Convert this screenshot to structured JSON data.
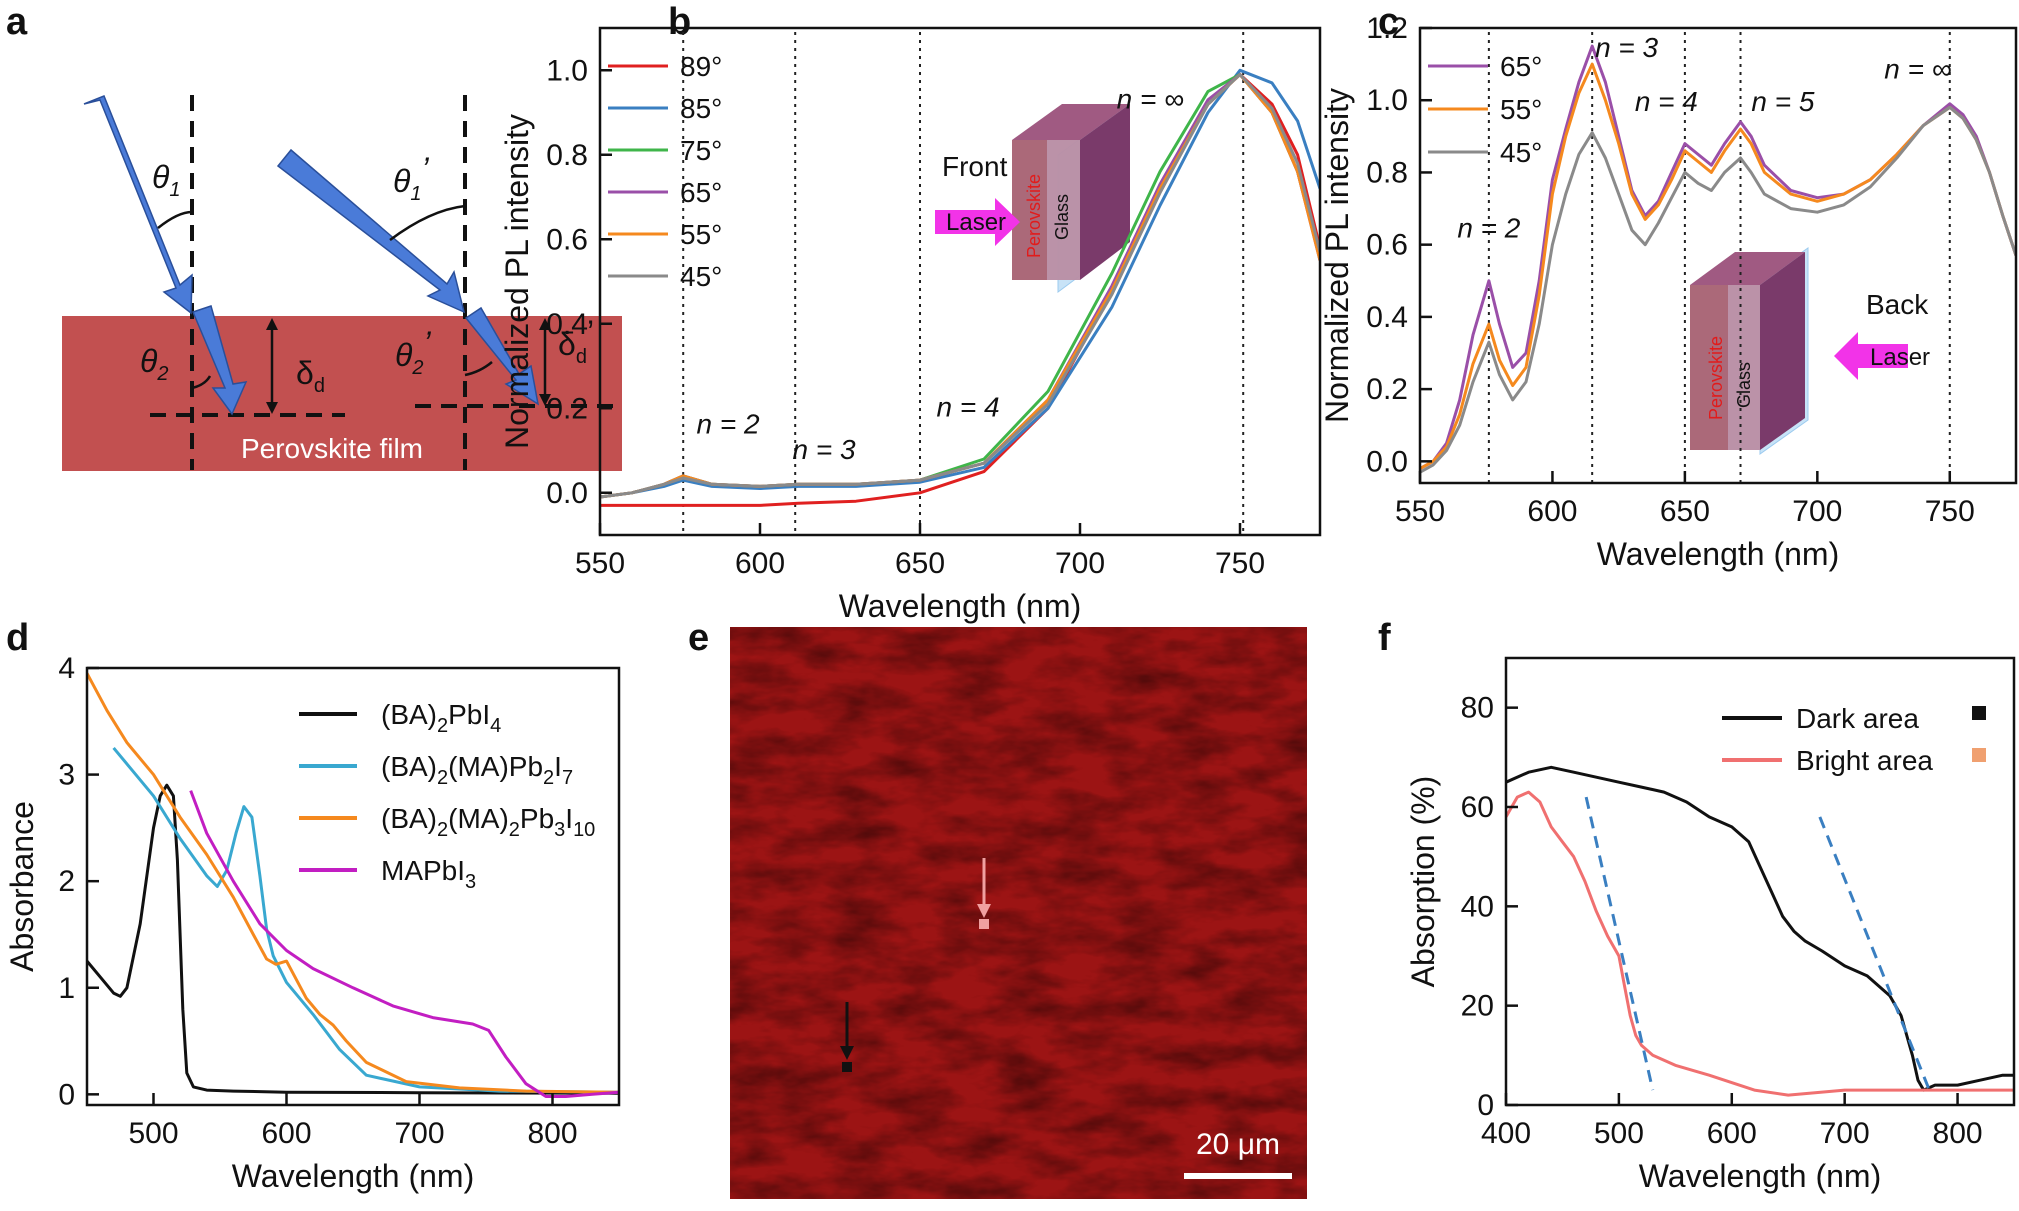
{
  "figure": {
    "panels": [
      "a",
      "b",
      "c",
      "d",
      "e",
      "f"
    ]
  },
  "panel_a": {
    "label": "a",
    "film_label": "Perovskite film",
    "film_color": "#c25050",
    "beam_color": "#4a7bd8",
    "theta1": "θ",
    "theta1_sub": "1",
    "theta1p": "θ",
    "theta1p_sub": "1",
    "prime": "’",
    "theta2": "θ",
    "theta2_sub": "2",
    "theta2p": "θ",
    "theta2p_sub": "2",
    "delta": "δ",
    "delta_sub": "d",
    "deltap": "δ",
    "deltap_sub": "d"
  },
  "panel_e": {
    "label": "e",
    "image_color": "#9c1414",
    "scale_bar": "20 μm",
    "bright_marker_color": "#f0a0a0",
    "dark_marker_color": "#111111"
  },
  "chart_data": [
    {
      "panel": "b",
      "type": "line",
      "xlabel": "Wavelength (nm)",
      "ylabel": "Normalized PL intensity",
      "xlim": [
        550,
        775
      ],
      "ylim": [
        -0.1,
        1.1
      ],
      "xticks": [
        550,
        600,
        650,
        700,
        750
      ],
      "yticks": [
        0.0,
        0.2,
        0.4,
        0.6,
        0.8,
        1.0
      ],
      "ytick_labels": [
        "0.0",
        "0.2",
        "0.4",
        "0.6",
        "0.8",
        "1.0"
      ],
      "legend": [
        "89°",
        "85°",
        "75°",
        "65°",
        "55°",
        "45°"
      ],
      "colors": [
        "#e02020",
        "#3a7fc1",
        "#3fb54a",
        "#9a4fa8",
        "#f5891e",
        "#8a8a8a"
      ],
      "x": [
        550,
        560,
        570,
        576,
        585,
        600,
        612,
        630,
        650,
        670,
        690,
        710,
        725,
        740,
        750,
        760,
        768,
        775
      ],
      "series": [
        {
          "name": "89°",
          "values": [
            -0.03,
            -0.03,
            -0.03,
            -0.03,
            -0.03,
            -0.03,
            -0.025,
            -0.02,
            0.0,
            0.05,
            0.2,
            0.48,
            0.72,
            0.92,
            0.99,
            0.92,
            0.8,
            0.58
          ]
        },
        {
          "name": "85°",
          "values": [
            -0.01,
            0.0,
            0.015,
            0.03,
            0.015,
            0.01,
            0.015,
            0.015,
            0.025,
            0.06,
            0.2,
            0.44,
            0.68,
            0.9,
            1.0,
            0.97,
            0.88,
            0.72
          ]
        },
        {
          "name": "75°",
          "values": [
            -0.01,
            0.0,
            0.02,
            0.04,
            0.02,
            0.015,
            0.02,
            0.02,
            0.03,
            0.08,
            0.24,
            0.52,
            0.76,
            0.95,
            0.99,
            0.9,
            0.76,
            0.56
          ]
        },
        {
          "name": "65°",
          "values": [
            -0.01,
            0.0,
            0.02,
            0.04,
            0.02,
            0.015,
            0.02,
            0.02,
            0.03,
            0.07,
            0.22,
            0.49,
            0.73,
            0.93,
            0.99,
            0.9,
            0.76,
            0.55
          ]
        },
        {
          "name": "55°",
          "values": [
            -0.01,
            0.0,
            0.02,
            0.04,
            0.02,
            0.015,
            0.02,
            0.02,
            0.03,
            0.07,
            0.22,
            0.48,
            0.72,
            0.92,
            0.99,
            0.9,
            0.76,
            0.55
          ]
        },
        {
          "name": "45°",
          "values": [
            -0.01,
            0.0,
            0.02,
            0.035,
            0.02,
            0.015,
            0.02,
            0.02,
            0.03,
            0.07,
            0.21,
            0.47,
            0.71,
            0.92,
            0.99,
            0.91,
            0.78,
            0.57
          ]
        }
      ],
      "vlines": [
        576,
        611,
        650,
        751
      ],
      "annotations": [
        {
          "text": "n = 2",
          "x": 590,
          "y": 0.14
        },
        {
          "text": "n = 3",
          "x": 620,
          "y": 0.08
        },
        {
          "text": "n = 4",
          "x": 665,
          "y": 0.18
        },
        {
          "text": "n = ∞",
          "x": 722,
          "y": 0.91
        }
      ],
      "inset": {
        "direction": "Front",
        "laser": "Laser",
        "layer1": "Perovskite",
        "layer2": "Glass"
      }
    },
    {
      "panel": "c",
      "type": "line",
      "xlabel": "Wavelength (nm)",
      "ylabel": "Normalized PL intensity",
      "xlim": [
        550,
        775
      ],
      "ylim": [
        -0.06,
        1.2
      ],
      "xticks": [
        550,
        600,
        650,
        700,
        750
      ],
      "yticks": [
        0.0,
        0.2,
        0.4,
        0.6,
        0.8,
        1.0,
        1.2
      ],
      "ytick_labels": [
        "0.0",
        "0.2",
        "0.4",
        "0.6",
        "0.8",
        "1.0",
        "1.2"
      ],
      "legend": [
        "65°",
        "55°",
        "45°"
      ],
      "colors": [
        "#9a4fa8",
        "#f5891e",
        "#8a8a8a"
      ],
      "x": [
        550,
        555,
        560,
        565,
        570,
        576,
        580,
        585,
        590,
        595,
        600,
        605,
        610,
        615,
        620,
        625,
        630,
        635,
        640,
        645,
        650,
        655,
        660,
        665,
        671,
        675,
        680,
        690,
        700,
        710,
        720,
        730,
        740,
        750,
        755,
        760,
        765,
        770,
        775
      ],
      "series": [
        {
          "name": "65°",
          "values": [
            -0.02,
            0.0,
            0.05,
            0.17,
            0.35,
            0.5,
            0.38,
            0.26,
            0.3,
            0.5,
            0.78,
            0.92,
            1.05,
            1.15,
            1.05,
            0.9,
            0.75,
            0.68,
            0.72,
            0.8,
            0.88,
            0.85,
            0.82,
            0.88,
            0.94,
            0.9,
            0.82,
            0.75,
            0.73,
            0.74,
            0.78,
            0.85,
            0.93,
            0.99,
            0.96,
            0.9,
            0.8,
            0.68,
            0.57
          ]
        },
        {
          "name": "55°",
          "values": [
            -0.02,
            0.0,
            0.04,
            0.13,
            0.27,
            0.38,
            0.28,
            0.21,
            0.26,
            0.46,
            0.74,
            0.9,
            1.02,
            1.1,
            1.0,
            0.88,
            0.74,
            0.67,
            0.71,
            0.78,
            0.86,
            0.83,
            0.8,
            0.86,
            0.92,
            0.88,
            0.8,
            0.74,
            0.72,
            0.74,
            0.78,
            0.85,
            0.93,
            0.98,
            0.95,
            0.89,
            0.8,
            0.68,
            0.57
          ]
        },
        {
          "name": "45°",
          "values": [
            -0.03,
            -0.01,
            0.03,
            0.1,
            0.22,
            0.33,
            0.24,
            0.17,
            0.22,
            0.38,
            0.6,
            0.74,
            0.85,
            0.91,
            0.84,
            0.74,
            0.64,
            0.6,
            0.66,
            0.73,
            0.8,
            0.77,
            0.75,
            0.8,
            0.84,
            0.8,
            0.74,
            0.7,
            0.69,
            0.71,
            0.76,
            0.84,
            0.93,
            0.98,
            0.95,
            0.89,
            0.8,
            0.68,
            0.57
          ]
        }
      ],
      "vlines": [
        576,
        615,
        650,
        671,
        750
      ],
      "annotations": [
        {
          "text": "n = 2",
          "x": 576,
          "y": 0.62
        },
        {
          "text": "n = 3",
          "x": 628,
          "y": 1.12
        },
        {
          "text": "n = 4",
          "x": 643,
          "y": 0.97
        },
        {
          "text": "n = 5",
          "x": 687,
          "y": 0.97
        },
        {
          "text": "n = ∞",
          "x": 738,
          "y": 1.06
        }
      ],
      "inset": {
        "direction": "Back",
        "laser": "Laser",
        "layer1": "Perovskite",
        "layer2": "Glass"
      }
    },
    {
      "panel": "d",
      "type": "line",
      "xlabel": "Wavelength (nm)",
      "ylabel": "Absorbance",
      "xlim": [
        450,
        850
      ],
      "ylim": [
        -0.1,
        4.0
      ],
      "xticks": [
        500,
        600,
        700,
        800
      ],
      "yticks": [
        0,
        1,
        2,
        3,
        4
      ],
      "ytick_labels": [
        "0",
        "1",
        "2",
        "3",
        "4"
      ],
      "legend": [
        "(BA)₂PbI₄",
        "(BA)₂(MA)Pb₂I₇",
        "(BA)₂(MA)₂Pb₃I₁₀",
        "MAPbI₃"
      ],
      "colors": [
        "#111111",
        "#39a8d0",
        "#f5891e",
        "#c21ec2"
      ],
      "series": [
        {
          "name": "(BA)₂PbI₄",
          "x": [
            450,
            460,
            470,
            475,
            480,
            490,
            500,
            505,
            510,
            515,
            518,
            522,
            525,
            530,
            540,
            560,
            600,
            700,
            850
          ],
          "values": [
            1.25,
            1.1,
            0.95,
            0.92,
            1.0,
            1.6,
            2.5,
            2.8,
            2.9,
            2.8,
            2.2,
            0.8,
            0.2,
            0.07,
            0.04,
            0.03,
            0.02,
            0.015,
            0.01
          ]
        },
        {
          "name": "(BA)₂(MA)Pb₂I₇",
          "x": [
            470,
            480,
            500,
            520,
            540,
            548,
            555,
            562,
            568,
            574,
            580,
            585,
            590,
            600,
            620,
            640,
            660,
            700,
            760,
            850
          ],
          "values": [
            3.25,
            3.1,
            2.8,
            2.4,
            2.05,
            1.95,
            2.1,
            2.45,
            2.7,
            2.6,
            2.05,
            1.55,
            1.3,
            1.05,
            0.75,
            0.42,
            0.18,
            0.07,
            0.03,
            0.02
          ]
        },
        {
          "name": "(BA)₂(MA)₂Pb₃I₁₀",
          "x": [
            450,
            465,
            480,
            500,
            520,
            540,
            560,
            575,
            585,
            592,
            600,
            615,
            625,
            635,
            645,
            660,
            690,
            730,
            780,
            850
          ],
          "values": [
            3.95,
            3.6,
            3.3,
            3.0,
            2.6,
            2.25,
            1.85,
            1.5,
            1.27,
            1.22,
            1.25,
            0.9,
            0.75,
            0.65,
            0.5,
            0.3,
            0.12,
            0.06,
            0.03,
            0.02
          ]
        },
        {
          "name": "MAPbI₃",
          "x": [
            528,
            540,
            560,
            580,
            600,
            620,
            650,
            680,
            710,
            740,
            752,
            765,
            780,
            795,
            810,
            830,
            850
          ],
          "values": [
            2.85,
            2.45,
            2.0,
            1.6,
            1.35,
            1.18,
            1.0,
            0.83,
            0.72,
            0.66,
            0.6,
            0.35,
            0.1,
            -0.02,
            -0.02,
            0.0,
            0.02
          ]
        }
      ]
    },
    {
      "panel": "f",
      "type": "line",
      "xlabel": "Wavelength (nm)",
      "ylabel": "Absorption (%)",
      "xlim": [
        400,
        850
      ],
      "ylim": [
        0,
        90
      ],
      "xticks": [
        400,
        500,
        600,
        700,
        800
      ],
      "yticks": [
        0,
        20,
        40,
        60,
        80
      ],
      "ytick_labels": [
        "0",
        "20",
        "40",
        "60",
        "80"
      ],
      "legend": [
        "Dark area",
        "Bright area"
      ],
      "colors": [
        "#111111",
        "#f07070"
      ],
      "legend_marker_colors": [
        "#111111",
        "#f0a070"
      ],
      "series": [
        {
          "name": "Dark area",
          "x": [
            400,
            420,
            440,
            460,
            480,
            500,
            520,
            540,
            560,
            580,
            600,
            615,
            625,
            635,
            645,
            655,
            665,
            680,
            700,
            720,
            740,
            750,
            760,
            765,
            770,
            780,
            800,
            820,
            840,
            850
          ],
          "values": [
            65,
            67,
            68,
            67,
            66,
            65,
            64,
            63,
            61,
            58,
            56,
            53,
            48,
            43,
            38,
            35,
            33,
            31,
            28,
            26,
            22,
            18,
            10,
            5,
            3,
            4,
            4,
            5,
            6,
            6
          ]
        },
        {
          "name": "Bright area",
          "x": [
            400,
            410,
            420,
            430,
            440,
            450,
            460,
            470,
            480,
            490,
            500,
            505,
            510,
            515,
            520,
            530,
            550,
            580,
            620,
            650,
            700,
            750,
            800,
            850
          ],
          "values": [
            58,
            62,
            63,
            61,
            56,
            53,
            50,
            45,
            39,
            34,
            30,
            24,
            18,
            14,
            12,
            10,
            8,
            6,
            3,
            2,
            3,
            3,
            3,
            3
          ]
        }
      ],
      "dashed_lines": [
        {
          "x": [
            471,
            530
          ],
          "values": [
            62,
            3
          ]
        },
        {
          "x": [
            678,
            775
          ],
          "values": [
            58,
            3
          ]
        }
      ]
    }
  ]
}
